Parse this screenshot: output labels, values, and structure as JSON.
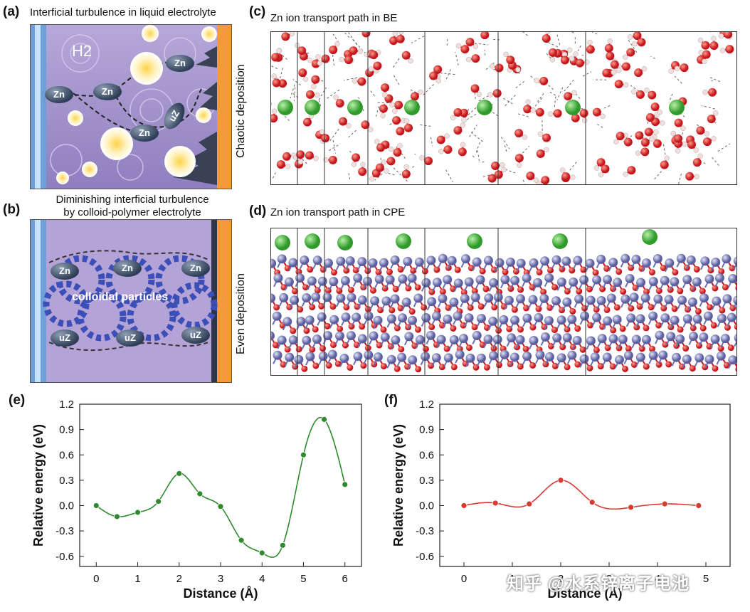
{
  "panels": {
    "a": {
      "label": "(a)",
      "title": "Interficial turbulence in liquid electrolyte",
      "side_text": "Chaotic deposition",
      "gas": "H2",
      "ions": [
        "Zn",
        "Zn",
        "Zn",
        "Zn",
        "uZ",
        "Zn"
      ]
    },
    "b": {
      "label": "(b)",
      "title_line1": "Diminishing interficial turbulence",
      "title_line2": "by colloid-polymer electrolyte",
      "side_text": "Even deposition",
      "center_text": "colloidal particles",
      "ions": [
        "Zn",
        "Zn",
        "Zn",
        "uZ",
        "uZ",
        "uZ"
      ]
    },
    "c": {
      "label": "(c)",
      "title": "Zn ion transport path in BE"
    },
    "d": {
      "label": "(d)",
      "title": "Zn ion transport path in CPE"
    },
    "e": {
      "label": "(e)"
    },
    "f": {
      "label": "(f)"
    }
  },
  "chart_data": [
    {
      "type": "line",
      "panel": "e",
      "xlabel": "Distance (Å)",
      "ylabel": "Relative energy (eV)",
      "xlim": [
        -0.4,
        6.4
      ],
      "ylim": [
        -0.72,
        1.2
      ],
      "xticks": [
        "0",
        "1",
        "2",
        "3",
        "4",
        "5",
        "6"
      ],
      "yticks": [
        "1.2",
        "0.9",
        "0.6",
        "0.3",
        "0.0",
        "-0.3",
        "-0.6"
      ],
      "series": [
        {
          "color": "#2f8a2f",
          "x": [
            0,
            0.5,
            1,
            1.5,
            2,
            2.5,
            3,
            3.5,
            4,
            4.5,
            5,
            5.5,
            6
          ],
          "y": [
            0.0,
            -0.13,
            -0.08,
            0.05,
            0.38,
            0.14,
            -0.01,
            -0.41,
            -0.56,
            -0.47,
            0.6,
            1.02,
            0.25
          ]
        }
      ]
    },
    {
      "type": "line",
      "panel": "f",
      "xlabel": "Distance (Å)",
      "ylabel": "Relative energy (eV)",
      "xlim": [
        -0.5,
        5.5
      ],
      "ylim": [
        -0.72,
        1.2
      ],
      "xticks": [
        "0",
        "1",
        "2",
        "3",
        "4",
        "5"
      ],
      "yticks": [
        "1.2",
        "0.9",
        "0.6",
        "0.3",
        "0.0",
        "-0.3",
        "-0.6"
      ],
      "series": [
        {
          "color": "#d83a32",
          "x": [
            0,
            0.65,
            1.35,
            2.0,
            2.65,
            3.45,
            4.15,
            4.85
          ],
          "y": [
            0.0,
            0.03,
            0.02,
            0.3,
            0.04,
            -0.02,
            0.02,
            0.0
          ]
        }
      ]
    }
  ],
  "watermark": "知乎 @水系锌离子电池"
}
